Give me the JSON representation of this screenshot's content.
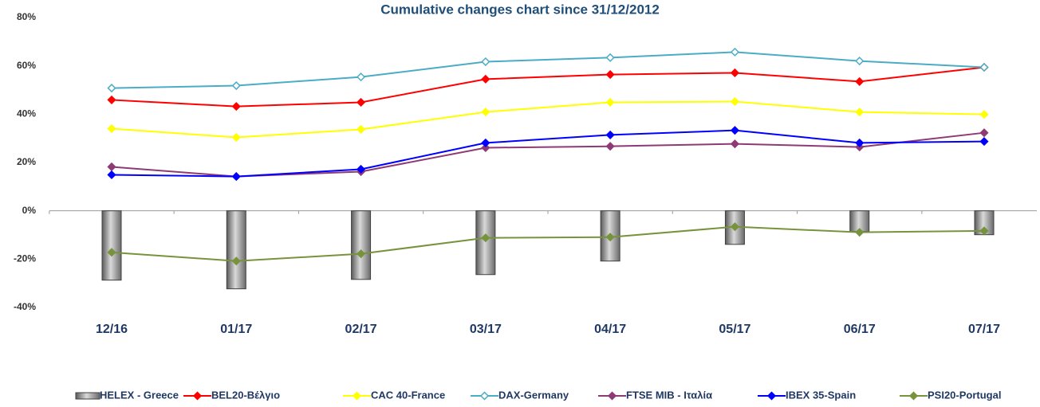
{
  "chart_data": {
    "type": "combo",
    "title": "Cumulative changes chart since 31/12/2012",
    "categories": [
      "12/16",
      "01/17",
      "02/17",
      "03/17",
      "04/17",
      "05/17",
      "06/17",
      "07/17"
    ],
    "series": [
      {
        "name": "HELEX - Greece",
        "type": "bar",
        "color": "#808080",
        "values": [
          -28.7,
          -32.3,
          -28.4,
          -26.4,
          -20.8,
          -13.9,
          -8.6,
          -9.9
        ]
      },
      {
        "name": "BEL20-Βέλγιο",
        "type": "line",
        "color": "#ff0000",
        "values": [
          45.9,
          43.2,
          44.9,
          54.5,
          56.4,
          57.1,
          53.5,
          59.4
        ]
      },
      {
        "name": "CAC 40-France",
        "type": "line",
        "color": "#ffff00",
        "values": [
          34.0,
          30.4,
          33.7,
          40.9,
          44.9,
          45.2,
          40.9,
          39.9
        ]
      },
      {
        "name": "DAX-Germany",
        "type": "line",
        "color": "#4bacc6",
        "marker_fill": "#ffffff",
        "values": [
          50.8,
          51.8,
          55.4,
          61.7,
          63.4,
          65.7,
          62.0,
          59.4
        ]
      },
      {
        "name": "FTSE MIB - Ιταλία",
        "type": "line",
        "color": "#8e3a75",
        "values": [
          18.2,
          14.2,
          16.2,
          26.1,
          26.7,
          27.7,
          26.4,
          32.3
        ]
      },
      {
        "name": "IBEX 35-Spain",
        "type": "line",
        "color": "#0000ff",
        "values": [
          14.9,
          14.2,
          17.2,
          28.1,
          31.4,
          33.3,
          28.1,
          28.7
        ]
      },
      {
        "name": "PSI20-Portugal",
        "type": "line",
        "color": "#77933c",
        "values": [
          -17.2,
          -20.8,
          -17.8,
          -11.2,
          -10.9,
          -6.6,
          -8.9,
          -8.3
        ]
      }
    ],
    "ylim": [
      -40,
      80
    ],
    "yticks": [
      {
        "value": -40,
        "label": "-40%"
      },
      {
        "value": -20,
        "label": "-20%"
      },
      {
        "value": 0,
        "label": "0%"
      },
      {
        "value": 20,
        "label": "20%"
      },
      {
        "value": 40,
        "label": "40%"
      },
      {
        "value": 60,
        "label": "60%"
      },
      {
        "value": 80,
        "label": "80%"
      }
    ],
    "grid": false,
    "legend": "bottom"
  }
}
